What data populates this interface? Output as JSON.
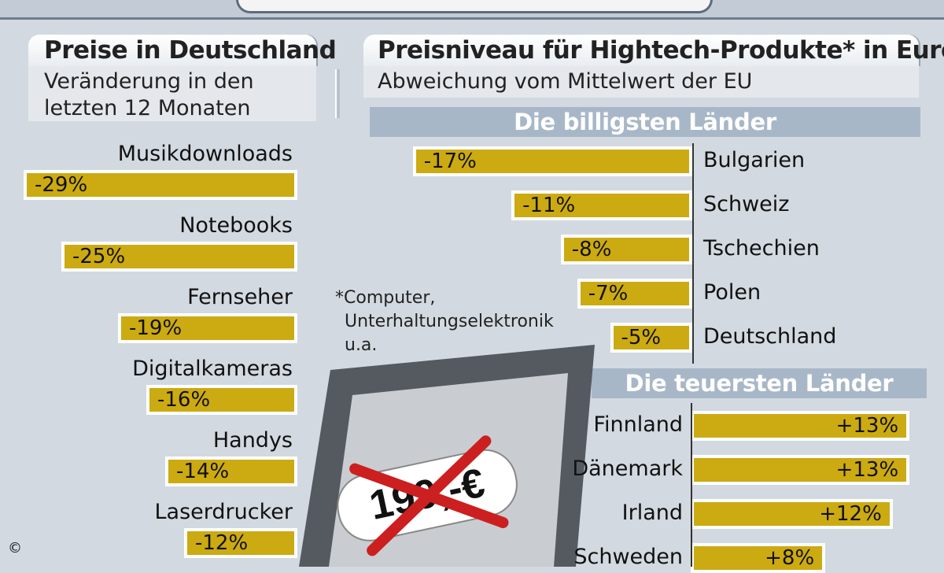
{
  "left_panel": {
    "title": "Preise in Deutschland",
    "subtitle_lines": [
      "Veränderung in den",
      "letzten 12 Monaten"
    ]
  },
  "right_panel": {
    "title": "Preisniveau für Hightech-Produkte* in Europa",
    "subtitle": "Abweichung vom Mittelwert der EU",
    "cheapest_heading": "Die billigsten Länder",
    "priciest_heading": "Die teuersten Länder"
  },
  "footnote_lines": [
    "*Computer,",
    "Unterhaltungselektronik",
    "u.a."
  ],
  "price_tag_text": "199,-€",
  "copyright": "©",
  "colors": {
    "bar": "#ccaa11",
    "band": "#a8b7c8",
    "background": "#d3d9e0",
    "cross": "#cc1f1f"
  },
  "chart_data": [
    {
      "type": "bar",
      "orientation": "horizontal",
      "title": "Preise in Deutschland",
      "subtitle": "Veränderung in den letzten 12 Monaten",
      "categories": [
        "Musikdownloads",
        "Notebooks",
        "Fernseher",
        "Digitalkameras",
        "Handys",
        "Laserdrucker"
      ],
      "values": [
        -29,
        -25,
        -19,
        -16,
        -14,
        -12
      ],
      "value_labels": [
        "-29%",
        "-25%",
        "-19%",
        "-16%",
        "-14%",
        "-12%"
      ],
      "unit": "%"
    },
    {
      "type": "bar",
      "orientation": "horizontal",
      "title": "Die billigsten Länder",
      "categories": [
        "Bulgarien",
        "Schweiz",
        "Tschechien",
        "Polen",
        "Deutschland"
      ],
      "values": [
        -17,
        -11,
        -8,
        -7,
        -5
      ],
      "value_labels": [
        "-17%",
        "-11%",
        "-8%",
        "-7%",
        "-5%"
      ],
      "unit": "%"
    },
    {
      "type": "bar",
      "orientation": "horizontal",
      "title": "Die teuersten Länder",
      "categories": [
        "Finnland",
        "Dänemark",
        "Irland",
        "Schweden"
      ],
      "values": [
        13,
        13,
        12,
        8
      ],
      "value_labels": [
        "+13%",
        "+13%",
        "+12%",
        "+8%"
      ],
      "unit": "%"
    }
  ]
}
